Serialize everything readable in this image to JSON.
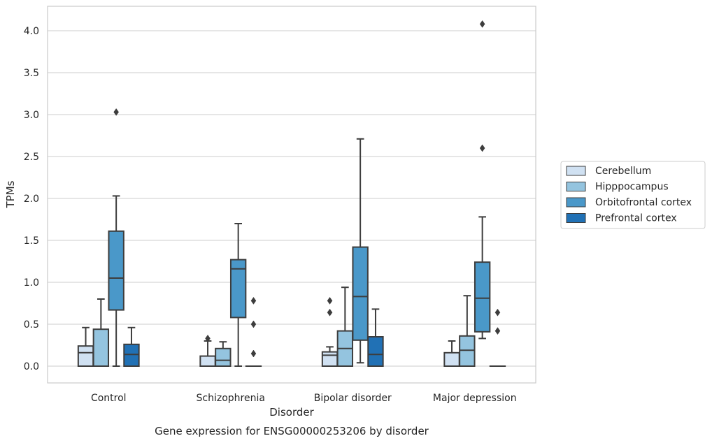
{
  "chart_data": {
    "type": "box",
    "xlabel": "Disorder",
    "ylabel": "TPMs",
    "caption": "Gene expression for ENSG00000253206 by disorder",
    "ylim": [
      -0.2,
      4.3
    ],
    "yticks": [
      "0.0",
      "0.5",
      "1.0",
      "1.5",
      "2.0",
      "2.5",
      "3.0",
      "3.5",
      "4.0"
    ],
    "grid": "horizontal",
    "legend_position": "right",
    "categories": [
      "Control",
      "Schizophrenia",
      "Bipolar disorder",
      "Major depression"
    ],
    "series": [
      {
        "name": "Cerebellum",
        "color": "#d0e1f2",
        "boxes": [
          {
            "min": 0.0,
            "q1": 0.0,
            "median": 0.16,
            "q3": 0.24,
            "max": 0.46,
            "outliers": []
          },
          {
            "min": 0.0,
            "q1": 0.0,
            "median": 0.0,
            "q3": 0.12,
            "max": 0.3,
            "outliers": [
              0.33
            ]
          },
          {
            "min": 0.0,
            "q1": 0.0,
            "median": 0.13,
            "q3": 0.17,
            "max": 0.23,
            "outliers": [
              0.64,
              0.78
            ]
          },
          {
            "min": 0.0,
            "q1": 0.0,
            "median": 0.0,
            "q3": 0.16,
            "max": 0.3,
            "outliers": []
          }
        ]
      },
      {
        "name": "Hipppocampus",
        "color": "#94c4df",
        "boxes": [
          {
            "min": 0.0,
            "q1": 0.0,
            "median": 0.0,
            "q3": 0.44,
            "max": 0.8,
            "outliers": []
          },
          {
            "min": 0.0,
            "q1": 0.0,
            "median": 0.07,
            "q3": 0.21,
            "max": 0.29,
            "outliers": []
          },
          {
            "min": 0.0,
            "q1": 0.0,
            "median": 0.21,
            "q3": 0.42,
            "max": 0.94,
            "outliers": []
          },
          {
            "min": 0.0,
            "q1": 0.0,
            "median": 0.19,
            "q3": 0.36,
            "max": 0.84,
            "outliers": []
          }
        ]
      },
      {
        "name": "Orbitofrontal cortex",
        "color": "#4a98c9",
        "boxes": [
          {
            "min": 0.0,
            "q1": 0.67,
            "median": 1.05,
            "q3": 1.61,
            "max": 2.03,
            "outliers": [
              3.03
            ]
          },
          {
            "min": 0.0,
            "q1": 0.58,
            "median": 1.16,
            "q3": 1.27,
            "max": 1.7,
            "outliers": []
          },
          {
            "min": 0.04,
            "q1": 0.31,
            "median": 0.83,
            "q3": 1.42,
            "max": 2.71,
            "outliers": []
          },
          {
            "min": 0.33,
            "q1": 0.41,
            "median": 0.81,
            "q3": 1.24,
            "max": 1.78,
            "outliers": [
              2.6,
              4.08
            ]
          }
        ]
      },
      {
        "name": "Prefrontal cortex",
        "color": "#2171b5",
        "boxes": [
          {
            "min": 0.0,
            "q1": 0.0,
            "median": 0.14,
            "q3": 0.26,
            "max": 0.46,
            "outliers": []
          },
          {
            "min": 0.0,
            "q1": 0.0,
            "median": 0.0,
            "q3": 0.0,
            "max": 0.0,
            "outliers": [
              0.15,
              0.5,
              0.78
            ]
          },
          {
            "min": 0.0,
            "q1": 0.0,
            "median": 0.14,
            "q3": 0.35,
            "max": 0.68,
            "outliers": []
          },
          {
            "min": 0.0,
            "q1": 0.0,
            "median": 0.0,
            "q3": 0.0,
            "max": 0.0,
            "outliers": [
              0.42,
              0.64
            ]
          }
        ]
      }
    ]
  }
}
